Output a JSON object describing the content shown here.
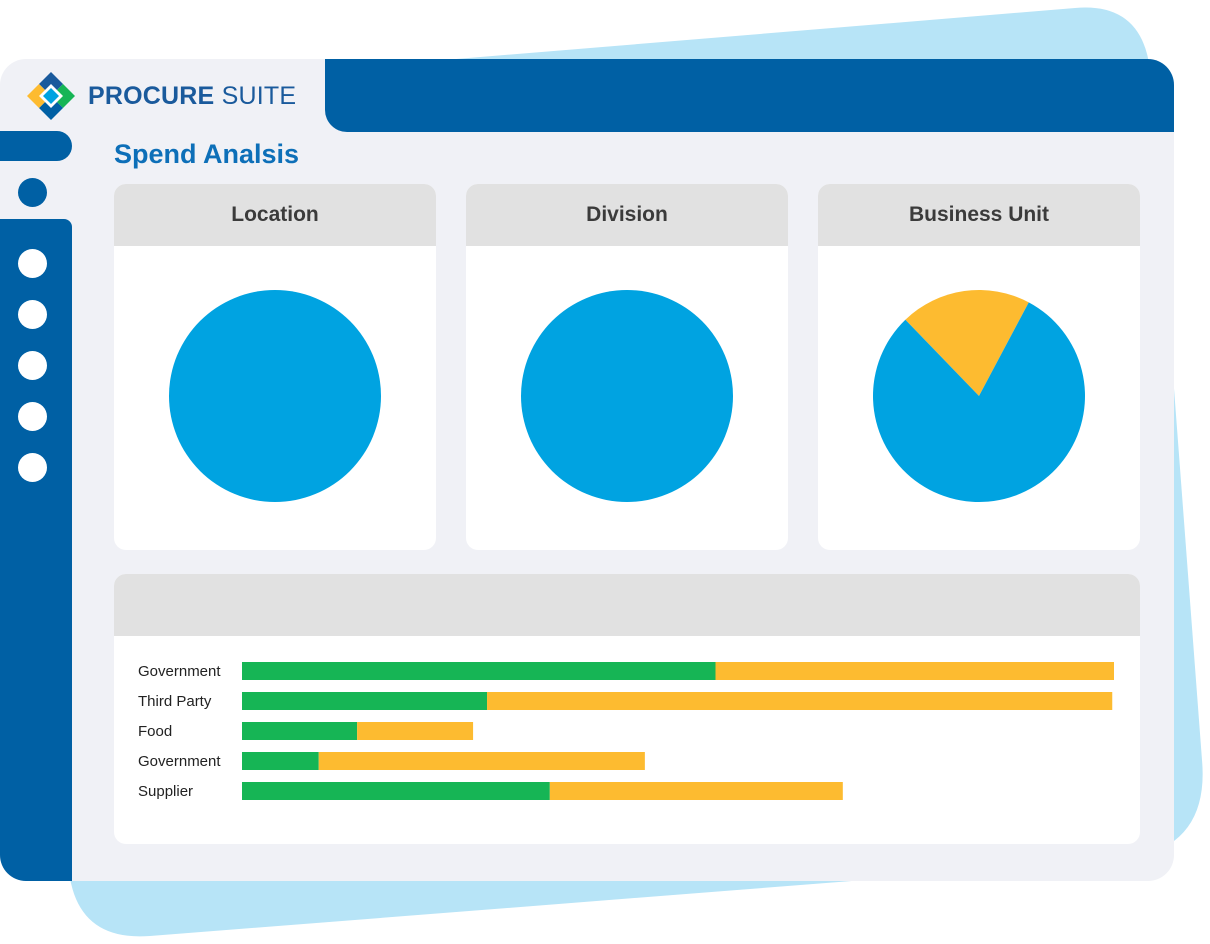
{
  "app": {
    "brand_bold": "PROCURE",
    "brand_light": " SUITE"
  },
  "page": {
    "title": "Spend Analsis"
  },
  "sidebar": {
    "active_index": 0,
    "item_count": 6
  },
  "colors": {
    "brand_blue": "#0060a4",
    "pie_blue": "#00a3e1",
    "pie_yellow": "#fdbb30",
    "bar_green": "#16b555",
    "bar_yellow": "#fdbb30",
    "header_gray": "#e1e1e1",
    "backdrop_blue": "#b7e4f7"
  },
  "cards": [
    {
      "title": "Location"
    },
    {
      "title": "Division"
    },
    {
      "title": "Business Unit"
    }
  ],
  "chart_data": [
    {
      "type": "pie",
      "title": "Location",
      "slices": [
        {
          "value": 100,
          "color": "#00a3e1"
        }
      ]
    },
    {
      "type": "pie",
      "title": "Division",
      "slices": [
        {
          "value": 100,
          "color": "#00a3e1"
        }
      ]
    },
    {
      "type": "pie",
      "title": "Business Unit",
      "slices": [
        {
          "value": 20,
          "color": "#fdbb30"
        },
        {
          "value": 80,
          "color": "#00a3e1"
        }
      ]
    },
    {
      "type": "bar",
      "orientation": "horizontal",
      "stacked": true,
      "categories": [
        "Government",
        "Third Party",
        "Food",
        "Government",
        "Supplier"
      ],
      "series": [
        {
          "color": "#16b555",
          "values": [
            54.3,
            28.1,
            13.2,
            8.8,
            35.3
          ]
        },
        {
          "color": "#fdbb30",
          "values": [
            45.7,
            71.7,
            13.3,
            37.4,
            33.6
          ]
        }
      ],
      "xlim": [
        0,
        100
      ]
    }
  ]
}
